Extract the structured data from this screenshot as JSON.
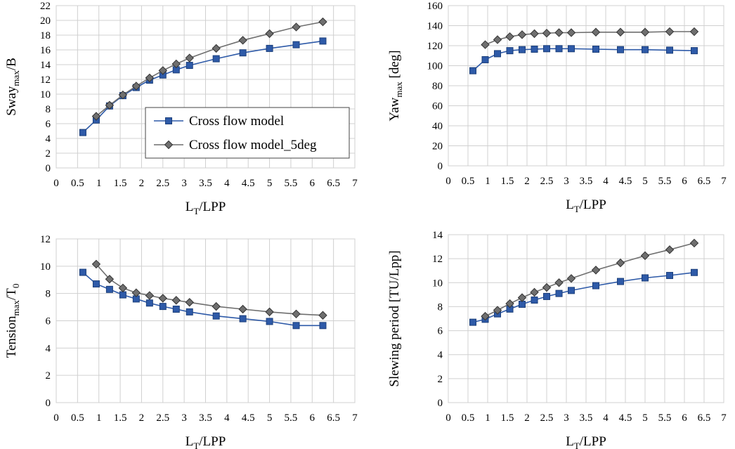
{
  "chart_data": [
    {
      "type": "line",
      "xlabel_main": "L",
      "xlabel_sub": "T",
      "xlabel_rest": "/LPP",
      "ylabel_main": "Sway",
      "ylabel_sub": "max",
      "ylabel_rest": "/B",
      "xlim": [
        0,
        7
      ],
      "ylim": [
        0,
        22
      ],
      "xticks": [
        0,
        0.5,
        1,
        1.5,
        2,
        2.5,
        3,
        3.5,
        4,
        4.5,
        5,
        5.5,
        6,
        6.5,
        7
      ],
      "yticks": [
        0,
        2,
        4,
        6,
        8,
        10,
        12,
        14,
        16,
        18,
        20,
        22
      ],
      "grid": true,
      "legend": "center-right",
      "series": [
        {
          "name": "Cross flow model",
          "color": "#2e5aa8",
          "marker": "square",
          "x": [
            0.625,
            0.938,
            1.25,
            1.563,
            1.875,
            2.188,
            2.5,
            2.813,
            3.125,
            3.75,
            4.375,
            5.0,
            5.625,
            6.25
          ],
          "y": [
            4.8,
            6.5,
            8.4,
            9.8,
            10.9,
            11.9,
            12.6,
            13.3,
            13.9,
            14.8,
            15.6,
            16.2,
            16.7,
            17.2
          ]
        },
        {
          "name": "Cross flow model_5deg",
          "color": "#6f6f6f",
          "marker": "diamond",
          "x": [
            0.938,
            1.25,
            1.563,
            1.875,
            2.188,
            2.5,
            2.813,
            3.125,
            3.75,
            4.375,
            5.0,
            5.625,
            6.25
          ],
          "y": [
            7.0,
            8.5,
            9.9,
            11.1,
            12.2,
            13.2,
            14.1,
            14.9,
            16.2,
            17.3,
            18.2,
            19.1,
            19.8
          ]
        }
      ]
    },
    {
      "type": "line",
      "xlabel_main": "L",
      "xlabel_sub": "T",
      "xlabel_rest": "/LPP",
      "ylabel_main": "Yaw",
      "ylabel_sub": "max",
      "ylabel_rest": " [deg]",
      "xlim": [
        0,
        7
      ],
      "ylim": [
        0,
        160
      ],
      "xticks": [
        0,
        0.5,
        1,
        1.5,
        2,
        2.5,
        3,
        3.5,
        4,
        4.5,
        5,
        5.5,
        6,
        6.5,
        7
      ],
      "yticks": [
        0,
        20,
        40,
        60,
        80,
        100,
        120,
        140,
        160
      ],
      "grid": true,
      "series": [
        {
          "color": "#2e5aa8",
          "marker": "square",
          "x": [
            0.625,
            0.938,
            1.25,
            1.563,
            1.875,
            2.188,
            2.5,
            2.813,
            3.125,
            3.75,
            4.375,
            5.0,
            5.625,
            6.25
          ],
          "y": [
            95,
            106,
            112,
            115,
            116,
            116.5,
            117,
            117,
            117,
            116.5,
            116,
            116,
            115.5,
            115
          ]
        },
        {
          "color": "#6f6f6f",
          "marker": "diamond",
          "x": [
            0.938,
            1.25,
            1.563,
            1.875,
            2.188,
            2.5,
            2.813,
            3.125,
            3.75,
            4.375,
            5.0,
            5.625,
            6.25
          ],
          "y": [
            121,
            126,
            129,
            131,
            132,
            132.5,
            133,
            133,
            133.5,
            133.5,
            133.5,
            134,
            134
          ]
        }
      ]
    },
    {
      "type": "line",
      "xlabel_main": "L",
      "xlabel_sub": "T",
      "xlabel_rest": "/LPP",
      "ylabel_main": "Tension",
      "ylabel_sub": "max",
      "ylabel_rest": "/T",
      "ylabel_sub2": "0",
      "xlim": [
        0,
        7
      ],
      "ylim": [
        0,
        12
      ],
      "xticks": [
        0,
        0.5,
        1,
        1.5,
        2,
        2.5,
        3,
        3.5,
        4,
        4.5,
        5,
        5.5,
        6,
        6.5,
        7
      ],
      "yticks": [
        0,
        2,
        4,
        6,
        8,
        10,
        12
      ],
      "grid": true,
      "series": [
        {
          "color": "#2e5aa8",
          "marker": "square",
          "x": [
            0.625,
            0.938,
            1.25,
            1.563,
            1.875,
            2.188,
            2.5,
            2.813,
            3.125,
            3.75,
            4.375,
            5.0,
            5.625,
            6.25
          ],
          "y": [
            9.55,
            8.7,
            8.3,
            7.9,
            7.6,
            7.3,
            7.05,
            6.85,
            6.65,
            6.35,
            6.15,
            5.95,
            5.65,
            5.65
          ]
        },
        {
          "color": "#6f6f6f",
          "marker": "diamond",
          "x": [
            0.938,
            1.25,
            1.563,
            1.875,
            2.188,
            2.5,
            2.813,
            3.125,
            3.75,
            4.375,
            5.0,
            5.625,
            6.25
          ],
          "y": [
            10.15,
            9.05,
            8.4,
            8.05,
            7.85,
            7.65,
            7.5,
            7.35,
            7.05,
            6.85,
            6.65,
            6.5,
            6.4
          ]
        }
      ]
    },
    {
      "type": "line",
      "xlabel_main": "L",
      "xlabel_sub": "T",
      "xlabel_rest": "/LPP",
      "ylabel_main": "Slewing period [TU/Lpp]",
      "xlim": [
        0,
        7
      ],
      "ylim": [
        0,
        14
      ],
      "xticks": [
        0,
        0.5,
        1,
        1.5,
        2,
        2.5,
        3,
        3.5,
        4,
        4.5,
        5,
        5.5,
        6,
        6.5,
        7
      ],
      "yticks": [
        0,
        2,
        4,
        6,
        8,
        10,
        12,
        14
      ],
      "grid": true,
      "series": [
        {
          "color": "#2e5aa8",
          "marker": "square",
          "x": [
            0.625,
            0.938,
            1.25,
            1.563,
            1.875,
            2.188,
            2.5,
            2.813,
            3.125,
            3.75,
            4.375,
            5.0,
            5.625,
            6.25
          ],
          "y": [
            6.7,
            6.95,
            7.4,
            7.8,
            8.2,
            8.55,
            8.85,
            9.1,
            9.35,
            9.75,
            10.1,
            10.4,
            10.6,
            10.85
          ]
        },
        {
          "color": "#6f6f6f",
          "marker": "diamond",
          "x": [
            0.938,
            1.25,
            1.563,
            1.875,
            2.188,
            2.5,
            2.813,
            3.125,
            3.75,
            4.375,
            5.0,
            5.625,
            6.25
          ],
          "y": [
            7.2,
            7.7,
            8.25,
            8.75,
            9.2,
            9.6,
            10.0,
            10.35,
            11.05,
            11.65,
            12.25,
            12.75,
            13.3
          ]
        }
      ]
    }
  ]
}
